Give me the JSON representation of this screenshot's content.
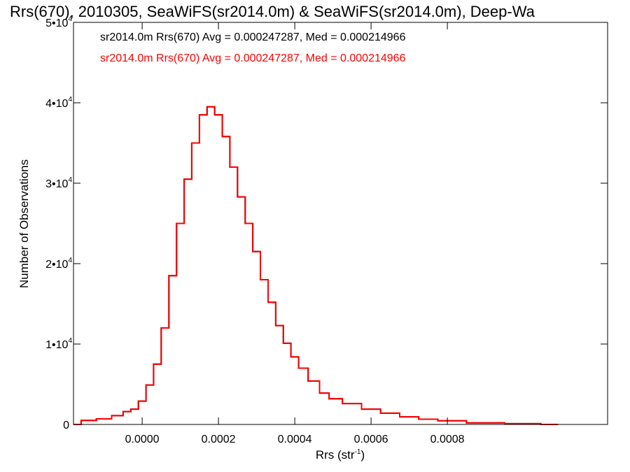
{
  "chart_data": {
    "type": "line",
    "title": "Rrs(670), 2010305, SeaWiFS(sr2014.0m) & SeaWiFS(sr2014.0m), Deep-Wa",
    "xlabel": "Rrs (str",
    "xlabel_sup": "-1",
    "xlabel_close": ")",
    "ylabel": "Number of Observations",
    "xlim": [
      -0.00018,
      0.00122
    ],
    "ylim": [
      0,
      50000
    ],
    "x_ticks": [
      {
        "value": 0.0,
        "label": "0.0000"
      },
      {
        "value": 0.0002,
        "label": "0.0002"
      },
      {
        "value": 0.0004,
        "label": "0.0004"
      },
      {
        "value": 0.0006,
        "label": "0.0006"
      },
      {
        "value": 0.0008,
        "label": "0.0008"
      }
    ],
    "y_ticks": [
      {
        "value": 0,
        "base": "0",
        "exp": ""
      },
      {
        "value": 10000,
        "base": "1•10",
        "exp": "4"
      },
      {
        "value": 20000,
        "base": "2•10",
        "exp": "4"
      },
      {
        "value": 30000,
        "base": "3•10",
        "exp": "4"
      },
      {
        "value": 40000,
        "base": "4•10",
        "exp": "4"
      },
      {
        "value": 50000,
        "base": "5•10",
        "exp": "4"
      }
    ],
    "legend_placement": "top-left",
    "series": [
      {
        "name": "sr2014.0m Rrs(670) Avg = 0.000247287, Med = 0.000214966",
        "color": "#000000",
        "x": [
          -0.00018,
          -0.00014,
          -0.0001,
          -6e-05,
          -4e-05,
          -2e-05,
          0.0,
          2e-05,
          4e-05,
          6e-05,
          8e-05,
          0.0001,
          0.00012,
          0.00014,
          0.00016,
          0.00018,
          0.0002,
          0.00022,
          0.00024,
          0.00026,
          0.00028,
          0.0003,
          0.00032,
          0.00034,
          0.00036,
          0.00038,
          0.0004,
          0.00042,
          0.00045,
          0.00048,
          0.0005,
          0.00055,
          0.0006,
          0.00065,
          0.0007,
          0.00075,
          0.0008,
          0.0009,
          0.001,
          0.00109
        ],
        "y": [
          0,
          500,
          700,
          1100,
          1600,
          1900,
          2900,
          4900,
          7500,
          12000,
          18500,
          25000,
          30500,
          35000,
          38500,
          39500,
          38500,
          35800,
          32000,
          28300,
          25000,
          21500,
          18000,
          15200,
          12300,
          10100,
          8400,
          7000,
          5400,
          3900,
          3200,
          2600,
          1900,
          1400,
          950,
          650,
          450,
          200,
          100,
          0
        ]
      },
      {
        "name": "sr2014.0m Rrs(670) Avg = 0.000247287, Med = 0.000214966",
        "color": "#ff0000",
        "x": [
          -0.00018,
          -0.00014,
          -0.0001,
          -6e-05,
          -4e-05,
          -2e-05,
          0.0,
          2e-05,
          4e-05,
          6e-05,
          8e-05,
          0.0001,
          0.00012,
          0.00014,
          0.00016,
          0.00018,
          0.0002,
          0.00022,
          0.00024,
          0.00026,
          0.00028,
          0.0003,
          0.00032,
          0.00034,
          0.00036,
          0.00038,
          0.0004,
          0.00042,
          0.00045,
          0.00048,
          0.0005,
          0.00055,
          0.0006,
          0.00065,
          0.0007,
          0.00075,
          0.0008,
          0.0009,
          0.001,
          0.00109
        ],
        "y": [
          0,
          500,
          700,
          1100,
          1600,
          1900,
          2900,
          4900,
          7500,
          12000,
          18500,
          25000,
          30500,
          35000,
          38500,
          39500,
          38500,
          35800,
          32000,
          28300,
          25000,
          21500,
          18000,
          15200,
          12300,
          10100,
          8400,
          7000,
          5400,
          3900,
          3200,
          2600,
          1900,
          1400,
          950,
          650,
          450,
          200,
          100,
          0
        ]
      }
    ]
  }
}
